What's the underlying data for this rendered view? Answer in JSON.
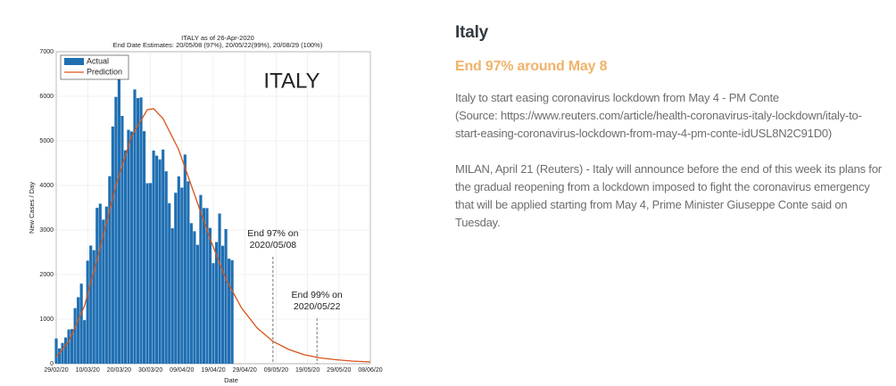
{
  "chart_data": {
    "type": "bar",
    "title": "ITALY as of 26-Apr-2020",
    "subtitle": "End Date Estimates: 20/05/08 (97%), 20/05/22(99%), 20/08/29 (100%)",
    "label": "ITALY",
    "xlabel": "Date",
    "ylabel": "New Cases / Day",
    "xlim": [
      "29/02/20",
      "08/06/20"
    ],
    "xticks": [
      "29/02/20",
      "10/03/20",
      "20/03/20",
      "30/03/20",
      "09/04/20",
      "19/04/20",
      "29/04/20",
      "09/05/20",
      "19/05/20",
      "29/05/20",
      "08/06/20"
    ],
    "ylim": [
      0,
      7000
    ],
    "yticks": [
      0,
      1000,
      2000,
      3000,
      4000,
      5000,
      6000,
      7000
    ],
    "grid": true,
    "legend": "upper-left",
    "series": [
      {
        "name": "Actual",
        "type": "bar",
        "color": "#1f6fb2",
        "x": [
          "29/02/20",
          "01/03/20",
          "02/03/20",
          "03/03/20",
          "04/03/20",
          "05/03/20",
          "06/03/20",
          "07/03/20",
          "08/03/20",
          "09/03/20",
          "10/03/20",
          "11/03/20",
          "12/03/20",
          "13/03/20",
          "14/03/20",
          "15/03/20",
          "16/03/20",
          "17/03/20",
          "18/03/20",
          "19/03/20",
          "20/03/20",
          "21/03/20",
          "22/03/20",
          "23/03/20",
          "24/03/20",
          "25/03/20",
          "26/03/20",
          "27/03/20",
          "28/03/20",
          "29/03/20",
          "30/03/20",
          "31/03/20",
          "01/04/20",
          "02/04/20",
          "03/04/20",
          "04/04/20",
          "05/04/20",
          "06/04/20",
          "07/04/20",
          "08/04/20",
          "09/04/20",
          "10/04/20",
          "11/04/20",
          "12/04/20",
          "13/04/20",
          "14/04/20",
          "15/04/20",
          "16/04/20",
          "17/04/20",
          "18/04/20",
          "19/04/20",
          "20/04/20",
          "21/04/20",
          "22/04/20",
          "23/04/20",
          "24/04/20",
          "25/04/20"
        ],
        "values": [
          566,
          342,
          466,
          587,
          769,
          778,
          1247,
          1492,
          1797,
          977,
          2313,
          2651,
          2547,
          3497,
          3590,
          3233,
          3526,
          4207,
          5322,
          5986,
          6557,
          5560,
          4789,
          5249,
          5210,
          6153,
          5959,
          5974,
          5217,
          4050,
          4053,
          4782,
          4668,
          4585,
          4805,
          4316,
          3599,
          3039,
          3836,
          4204,
          3951,
          4694,
          4092,
          3153,
          2972,
          2667,
          3786,
          3493,
          3491,
          3047,
          2256,
          2729,
          3370,
          2646,
          3021,
          2357,
          2324
        ]
      },
      {
        "name": "Prediction",
        "type": "line",
        "color": "#d95319",
        "x": [
          "29/02/20",
          "04/03/20",
          "09/03/20",
          "14/03/20",
          "19/03/20",
          "24/03/20",
          "29/03/20",
          "31/03/20",
          "03/04/20",
          "08/04/20",
          "13/04/20",
          "18/04/20",
          "23/04/20",
          "28/04/20",
          "03/05/20",
          "08/05/20",
          "13/05/20",
          "18/05/20",
          "23/05/20",
          "28/05/20",
          "02/06/20",
          "08/06/20"
        ],
        "values": [
          150,
          500,
          1300,
          2600,
          4000,
          5100,
          5700,
          5720,
          5500,
          4800,
          3800,
          2800,
          1900,
          1250,
          800,
          500,
          320,
          200,
          130,
          90,
          60,
          40
        ]
      }
    ],
    "annotations": [
      {
        "lines": [
          "End 97% on",
          "2020/05/08"
        ],
        "x": "08/05/20"
      },
      {
        "lines": [
          "End 99% on",
          "2020/05/22"
        ],
        "x": "22/05/20"
      }
    ]
  },
  "article": {
    "title": "Italy",
    "subtitle": "End 97% around May 8",
    "paragraphs": [
      [
        "Italy to start easing coronavirus lockdown from May 4 - PM Conte",
        "(Source: https://www.reuters.com/article/health-coronavirus-italy-lockdown/italy-to-start-easing-coronavirus-lockdown-from-may-4-pm-conte-idUSL8N2C91D0)"
      ],
      [
        "MILAN, April 21 (Reuters) - Italy will announce before the end of this week its plans for the gradual reopening from a lockdown imposed to fight the coronavirus emergency that will be applied starting from May 4, Prime Minister Giuseppe Conte said on Tuesday."
      ]
    ]
  }
}
